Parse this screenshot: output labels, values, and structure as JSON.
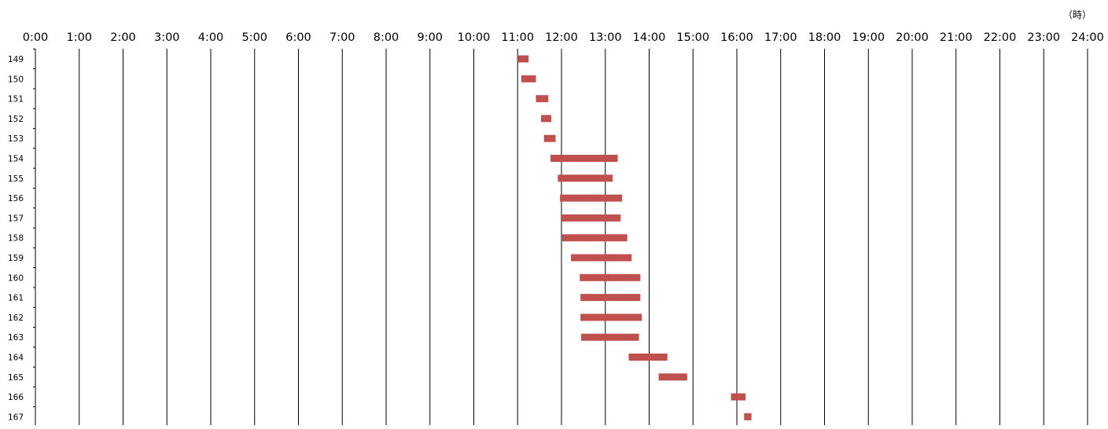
{
  "chart_data": {
    "type": "bar",
    "orientation": "horizontal-range",
    "unit_label": "（時）",
    "x_ticks": [
      "0:00",
      "1:00",
      "2:00",
      "3:00",
      "4:00",
      "5:00",
      "6:00",
      "7:00",
      "8:00",
      "9:00",
      "10:00",
      "11:00",
      "12:00",
      "13:00",
      "14:00",
      "15:00",
      "16:00",
      "17:00",
      "18:00",
      "19:00",
      "20:00",
      "21:00",
      "22:00",
      "23:00",
      "24:00"
    ],
    "xlim": [
      0,
      24
    ],
    "grid": "vertical",
    "bar_color": "#c0504d",
    "rows": [
      {
        "label": "149",
        "start": "11:00",
        "end": "11:15"
      },
      {
        "label": "150",
        "start": "11:05",
        "end": "11:25"
      },
      {
        "label": "151",
        "start": "11:25",
        "end": "11:42"
      },
      {
        "label": "152",
        "start": "11:32",
        "end": "11:46"
      },
      {
        "label": "153",
        "start": "11:36",
        "end": "11:52"
      },
      {
        "label": "154",
        "start": "11:45",
        "end": "13:17"
      },
      {
        "label": "155",
        "start": "11:55",
        "end": "13:10"
      },
      {
        "label": "156",
        "start": "11:58",
        "end": "13:23"
      },
      {
        "label": "157",
        "start": "11:59",
        "end": "13:21"
      },
      {
        "label": "158",
        "start": "12:01",
        "end": "13:30"
      },
      {
        "label": "159",
        "start": "12:13",
        "end": "13:36"
      },
      {
        "label": "160",
        "start": "12:25",
        "end": "13:48"
      },
      {
        "label": "161",
        "start": "12:26",
        "end": "13:48"
      },
      {
        "label": "162",
        "start": "12:26",
        "end": "13:50"
      },
      {
        "label": "163",
        "start": "12:27",
        "end": "13:46"
      },
      {
        "label": "164",
        "start": "13:32",
        "end": "14:25"
      },
      {
        "label": "165",
        "start": "14:13",
        "end": "14:52"
      },
      {
        "label": "166",
        "start": "15:52",
        "end": "16:12"
      },
      {
        "label": "167",
        "start": "16:10",
        "end": "16:20"
      }
    ]
  }
}
